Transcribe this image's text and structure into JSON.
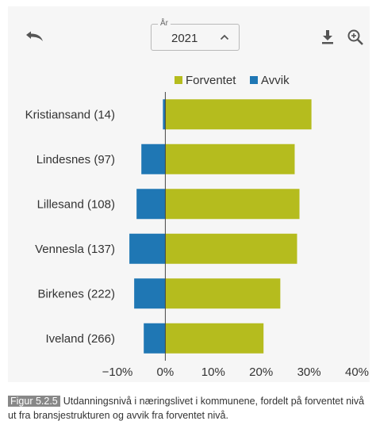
{
  "toolbar": {
    "year_label": "År",
    "year_value": "2021",
    "undo_icon": "undo-arrow-icon",
    "download_icon": "download-icon",
    "zoom_icon": "zoom-in-icon"
  },
  "chart_data": {
    "type": "bar",
    "orientation": "horizontal",
    "stacked": true,
    "categories": [
      "Kristiansand (14)",
      "Lindesnes (97)",
      "Lillesand (108)",
      "Vennesla (137)",
      "Birkenes (222)",
      "Iveland (266)"
    ],
    "series": [
      {
        "name": "Forventet",
        "color": "#b5bc1e",
        "values": [
          30.5,
          27,
          28,
          27.5,
          24,
          20.5
        ]
      },
      {
        "name": "Avvik",
        "color": "#1f77b4",
        "values": [
          -0.5,
          -5,
          -6,
          -7.5,
          -6.5,
          -4.5
        ]
      }
    ],
    "xlim": [
      -10,
      40
    ],
    "xticks": [
      -10,
      0,
      10,
      20,
      30,
      40
    ],
    "xtick_labels": [
      "−10%",
      "0%",
      "10%",
      "20%",
      "30%",
      "40%"
    ],
    "grid": false,
    "legend_position": "top"
  },
  "caption": {
    "label": "Figur 5.2.5",
    "text": "Utdanningsnivå i næringslivet i kommunene, fordelt på forventet nivå ut fra bransjestrukturen og avvik fra forventet nivå."
  }
}
